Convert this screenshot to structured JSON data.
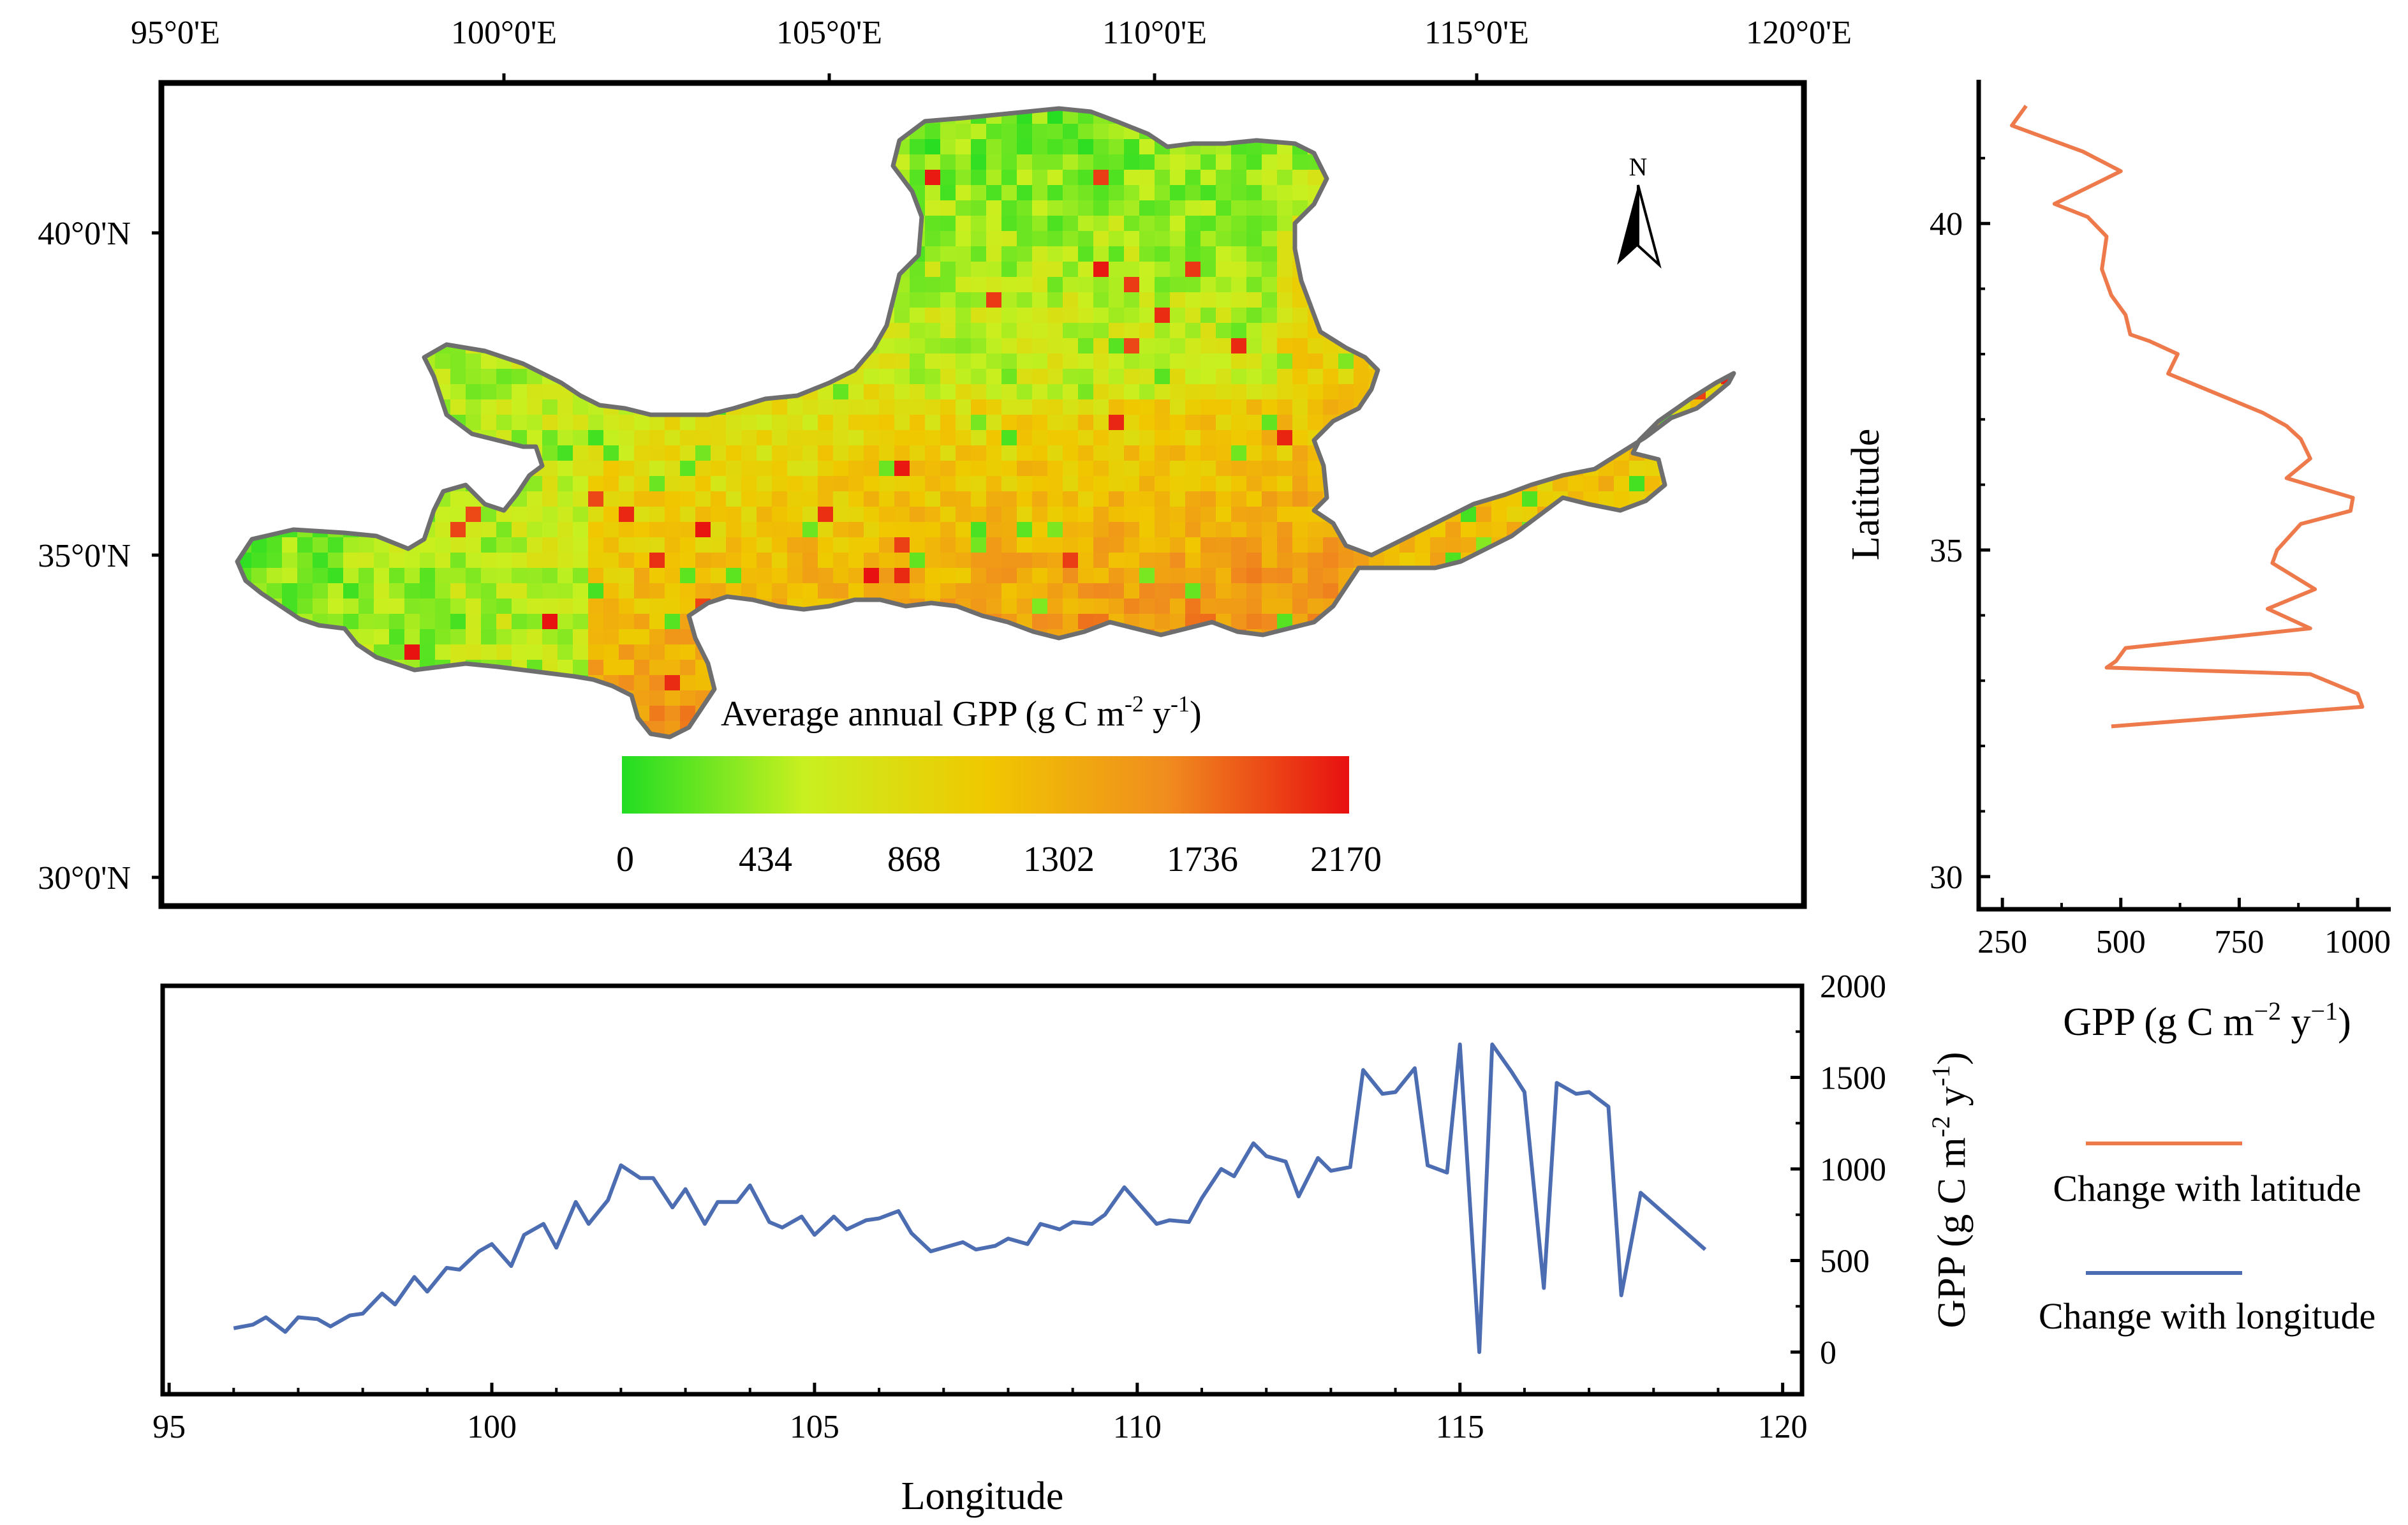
{
  "chart_data": [
    {
      "type": "heatmap",
      "name": "map",
      "title": "Average annual GPP (g C m-2 y-1)",
      "title_parts": {
        "main": "Average annual GPP (g C m",
        "sup1": "-2",
        "mid": " y",
        "sup2": "-1",
        "end": ")"
      },
      "x_ticks": [
        "95°0'E",
        "100°0'E",
        "105°0'E",
        "110°0'E",
        "115°0'E",
        "120°0'E"
      ],
      "y_ticks": [
        "40°0'N",
        "35°0'N",
        "30°0'N"
      ],
      "colorbar": {
        "ticks": [
          "0",
          "434",
          "868",
          "1302",
          "1736",
          "2170"
        ],
        "range": [
          0,
          2170
        ],
        "colors": [
          "#22dd22",
          "#c8f020",
          "#f0c800",
          "#f08c1e",
          "#e81010"
        ]
      },
      "north_arrow": "N"
    },
    {
      "type": "line",
      "name": "latitude-profile",
      "xlabel": "GPP (g C m−2 y−1)",
      "xlabel_parts": {
        "main": "GPP (g C m",
        "sup1": "−2",
        "mid": " y",
        "sup2": "−1",
        "end": ")"
      },
      "ylabel": "Latitude",
      "xlim": [
        200,
        1070
      ],
      "ylim": [
        29.5,
        42.2
      ],
      "x_ticks": [
        250,
        500,
        750,
        1000
      ],
      "y_ticks": [
        30,
        35,
        40
      ],
      "series": [
        {
          "name": "Change with latitude",
          "color": "#ee7a4c",
          "points": [
            [
              300,
              41.8
            ],
            [
              270,
              41.5
            ],
            [
              420,
              41.1
            ],
            [
              500,
              40.8
            ],
            [
              360,
              40.3
            ],
            [
              430,
              40.1
            ],
            [
              470,
              39.8
            ],
            [
              460,
              39.3
            ],
            [
              480,
              38.9
            ],
            [
              510,
              38.6
            ],
            [
              520,
              38.3
            ],
            [
              560,
              38.2
            ],
            [
              620,
              38.0
            ],
            [
              600,
              37.7
            ],
            [
              700,
              37.4
            ],
            [
              800,
              37.1
            ],
            [
              850,
              36.9
            ],
            [
              880,
              36.7
            ],
            [
              900,
              36.4
            ],
            [
              850,
              36.1
            ],
            [
              990,
              35.8
            ],
            [
              985,
              35.6
            ],
            [
              880,
              35.4
            ],
            [
              830,
              35.0
            ],
            [
              820,
              34.8
            ],
            [
              910,
              34.4
            ],
            [
              810,
              34.1
            ],
            [
              900,
              33.8
            ],
            [
              510,
              33.5
            ],
            [
              490,
              33.3
            ],
            [
              470,
              33.2
            ],
            [
              900,
              33.1
            ],
            [
              1000,
              32.8
            ],
            [
              1010,
              32.6
            ],
            [
              480,
              32.3
            ]
          ]
        }
      ]
    },
    {
      "type": "line",
      "name": "longitude-profile",
      "xlabel": "Longitude",
      "ylabel": "GPP (g C m-2 y-1)",
      "ylabel_parts": {
        "main": "GPP (g C m",
        "sup1": "-2",
        "mid": " y",
        "sup2": "-1",
        "end": ")"
      },
      "xlim": [
        94.9,
        120.3
      ],
      "ylim": [
        -230,
        2000
      ],
      "x_ticks": [
        95,
        100,
        105,
        110,
        115,
        120
      ],
      "y_ticks": [
        0,
        500,
        1000,
        1500,
        2000
      ],
      "series": [
        {
          "name": "Change with longitude",
          "color": "#4d6db2",
          "points": [
            [
              96.0,
              130
            ],
            [
              96.3,
              150
            ],
            [
              96.5,
              190
            ],
            [
              96.8,
              110
            ],
            [
              97.0,
              190
            ],
            [
              97.3,
              180
            ],
            [
              97.5,
              140
            ],
            [
              97.8,
              200
            ],
            [
              98.0,
              210
            ],
            [
              98.3,
              320
            ],
            [
              98.5,
              260
            ],
            [
              98.8,
              410
            ],
            [
              99.0,
              330
            ],
            [
              99.3,
              460
            ],
            [
              99.5,
              450
            ],
            [
              99.8,
              550
            ],
            [
              100.0,
              590
            ],
            [
              100.3,
              470
            ],
            [
              100.5,
              640
            ],
            [
              100.8,
              700
            ],
            [
              101.0,
              570
            ],
            [
              101.3,
              820
            ],
            [
              101.5,
              700
            ],
            [
              101.8,
              830
            ],
            [
              102.0,
              1020
            ],
            [
              102.3,
              950
            ],
            [
              102.5,
              950
            ],
            [
              102.8,
              790
            ],
            [
              103.0,
              890
            ],
            [
              103.3,
              700
            ],
            [
              103.5,
              820
            ],
            [
              103.8,
              820
            ],
            [
              104.0,
              910
            ],
            [
              104.3,
              710
            ],
            [
              104.5,
              680
            ],
            [
              104.8,
              740
            ],
            [
              105.0,
              640
            ],
            [
              105.3,
              740
            ],
            [
              105.5,
              670
            ],
            [
              105.8,
              720
            ],
            [
              106.0,
              730
            ],
            [
              106.3,
              770
            ],
            [
              106.5,
              650
            ],
            [
              106.8,
              550
            ],
            [
              107.0,
              570
            ],
            [
              107.3,
              600
            ],
            [
              107.5,
              560
            ],
            [
              107.8,
              580
            ],
            [
              108.0,
              620
            ],
            [
              108.3,
              590
            ],
            [
              108.5,
              700
            ],
            [
              108.8,
              670
            ],
            [
              109.0,
              710
            ],
            [
              109.3,
              700
            ],
            [
              109.5,
              750
            ],
            [
              109.8,
              900
            ],
            [
              110.0,
              820
            ],
            [
              110.3,
              700
            ],
            [
              110.5,
              720
            ],
            [
              110.8,
              710
            ],
            [
              111.0,
              840
            ],
            [
              111.3,
              1000
            ],
            [
              111.5,
              960
            ],
            [
              111.8,
              1140
            ],
            [
              112.0,
              1070
            ],
            [
              112.3,
              1040
            ],
            [
              112.5,
              850
            ],
            [
              112.8,
              1060
            ],
            [
              113.0,
              990
            ],
            [
              113.3,
              1010
            ],
            [
              113.5,
              1540
            ],
            [
              113.8,
              1410
            ],
            [
              114.0,
              1420
            ],
            [
              114.3,
              1550
            ],
            [
              114.5,
              1020
            ],
            [
              114.8,
              980
            ],
            [
              115.0,
              1680
            ],
            [
              115.3,
              0
            ],
            [
              115.5,
              1680
            ],
            [
              115.8,
              1530
            ],
            [
              116.0,
              1420
            ],
            [
              116.3,
              350
            ],
            [
              116.5,
              1470
            ],
            [
              116.8,
              1410
            ],
            [
              117.0,
              1420
            ],
            [
              117.3,
              1340
            ],
            [
              117.5,
              310
            ],
            [
              117.8,
              870
            ],
            [
              118.8,
              560
            ]
          ]
        }
      ]
    }
  ],
  "legend": {
    "entries": [
      {
        "label": "Change with latitude",
        "color": "#ee7a4c"
      },
      {
        "label": "Change with longitude",
        "color": "#4d6db2"
      }
    ]
  }
}
